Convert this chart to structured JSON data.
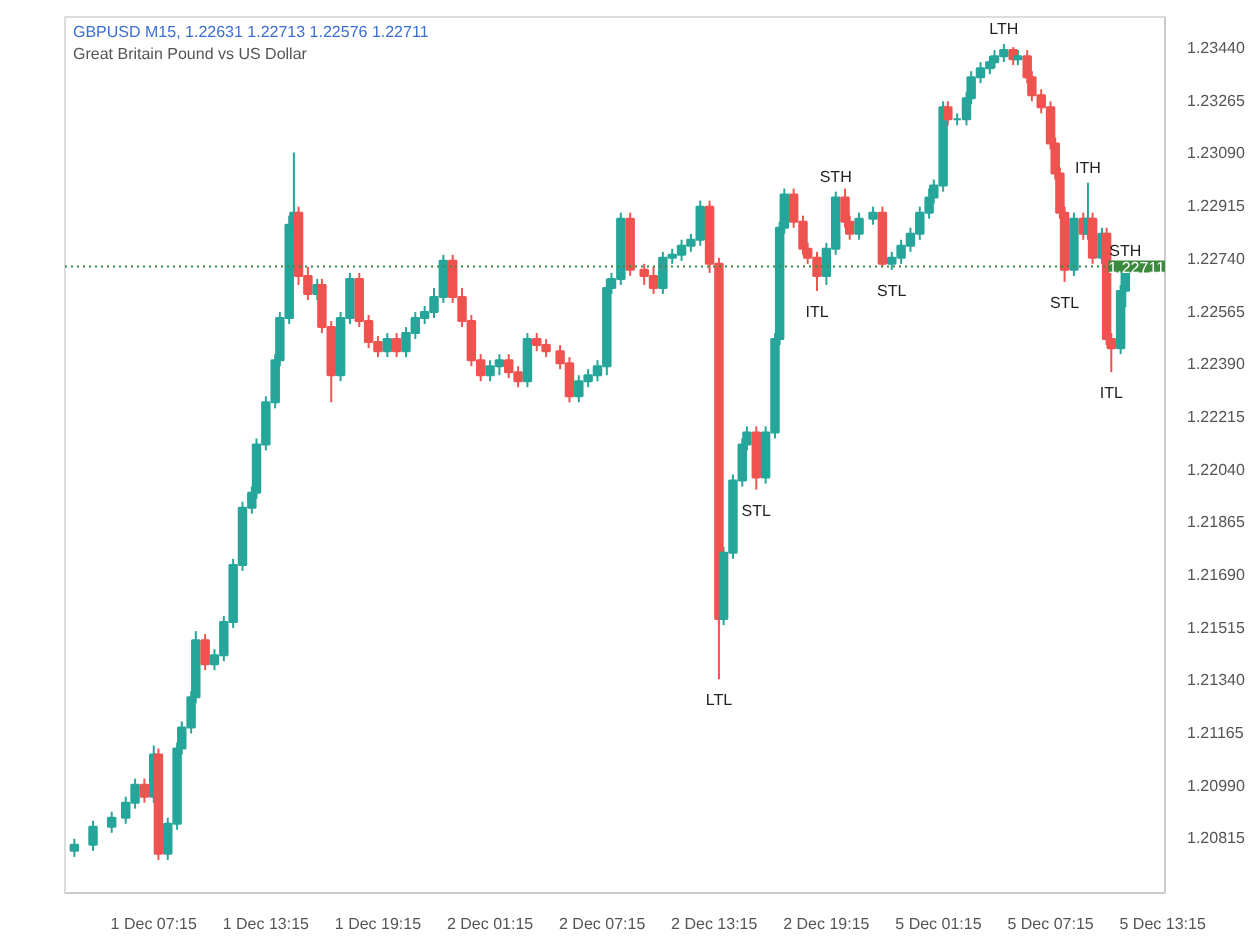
{
  "chart_data": {
    "type": "candlestick",
    "title": "GBPUSD M15, 1.22631 1.22713 1.22576 1.22711",
    "subtitle": "Great Britain Pound vs US Dollar",
    "categories": [
      null,
      null,
      null,
      null,
      null,
      null,
      null,
      null,
      null,
      null,
      null,
      null,
      null,
      null,
      null,
      null,
      null,
      null,
      "1 Dec 07:15",
      null,
      null,
      null,
      null,
      null,
      null,
      null,
      null,
      null,
      null,
      null,
      null,
      null,
      null,
      null,
      null,
      null,
      null,
      null,
      null,
      null,
      null,
      null,
      "1 Dec 13:15",
      null,
      null,
      null,
      null,
      null,
      null,
      null,
      null,
      null,
      null,
      null,
      null,
      null,
      null,
      null,
      null,
      null,
      null,
      null,
      null,
      null,
      null,
      null,
      "1 Dec 19:15",
      null,
      null,
      null,
      null,
      null,
      null,
      null,
      null,
      null,
      null,
      null,
      null,
      null,
      null,
      null,
      null,
      null,
      null,
      null,
      null,
      null,
      null,
      null,
      "2 Dec 01:15",
      null,
      null,
      null,
      null,
      null,
      null,
      null,
      null,
      null,
      null,
      null,
      null,
      null,
      null,
      null,
      null,
      null,
      null,
      null,
      null,
      null,
      null,
      null,
      "2 Dec 07:15",
      null,
      null,
      null,
      null,
      null,
      null,
      null,
      null,
      null,
      null,
      null,
      null,
      null,
      null,
      null,
      null,
      null,
      null,
      null,
      null,
      null,
      null,
      null,
      "2 Dec 13:15",
      null,
      null,
      null,
      null,
      null,
      null,
      null,
      null,
      null,
      null,
      null,
      null,
      null,
      null,
      null,
      null,
      null,
      null,
      null,
      null,
      null,
      null,
      null,
      "2 Dec 19:15",
      null,
      null,
      null,
      null,
      null,
      null,
      null,
      null,
      null,
      null,
      null,
      null,
      null,
      null,
      null,
      null,
      null,
      null,
      null,
      null,
      null,
      null,
      null,
      "5 Dec 01:15",
      null,
      null,
      null,
      null,
      null,
      null,
      null,
      null,
      null,
      null,
      null,
      null,
      null,
      null,
      null,
      null,
      null,
      null,
      null,
      null,
      null,
      null,
      null,
      "5 Dec 07:15",
      null,
      null,
      null,
      null,
      null,
      null,
      null,
      null,
      null,
      null,
      null,
      null,
      null,
      null,
      null,
      null,
      null,
      null,
      null,
      null,
      null,
      null,
      null,
      "5 Dec 13:15"
    ],
    "ohlc": [
      null,
      [
        1.2077,
        1.2081,
        1.2075,
        1.2079
      ],
      null,
      null,
      null,
      [
        1.2079,
        1.2087,
        1.2077,
        1.2085
      ],
      null,
      null,
      null,
      [
        1.2085,
        1.209,
        1.2083,
        1.2088
      ],
      null,
      null,
      [
        1.2088,
        1.2095,
        1.2086,
        1.2093
      ],
      null,
      [
        1.2093,
        1.2101,
        1.2091,
        1.2099
      ],
      null,
      [
        1.2099,
        1.2101,
        1.2093,
        1.2095
      ],
      null,
      [
        1.2095,
        1.2112,
        1.2093,
        1.2109
      ],
      [
        1.2109,
        1.2111,
        1.2074,
        1.2076
      ],
      null,
      [
        1.2076,
        1.2088,
        1.2074,
        1.2086
      ],
      null,
      [
        1.2086,
        1.2113,
        1.2084,
        1.2111
      ],
      [
        1.2111,
        1.212,
        1.2109,
        1.2118
      ],
      null,
      [
        1.2118,
        1.213,
        1.2116,
        1.2128
      ],
      [
        1.2128,
        1.215,
        1.2126,
        1.2147
      ],
      null,
      [
        1.2147,
        1.2149,
        1.2137,
        1.2139
      ],
      null,
      [
        1.2139,
        1.2144,
        1.2137,
        1.2142
      ],
      null,
      [
        1.2142,
        1.2155,
        1.214,
        1.2153
      ],
      null,
      [
        1.2153,
        1.2174,
        1.2151,
        1.2172
      ],
      null,
      [
        1.2172,
        1.2193,
        1.217,
        1.2191
      ],
      null,
      [
        1.2191,
        1.2198,
        1.2189,
        1.2196
      ],
      [
        1.2196,
        1.2214,
        1.2194,
        1.2212
      ],
      null,
      [
        1.2212,
        1.2228,
        1.221,
        1.2226
      ],
      null,
      [
        1.2226,
        1.2242,
        1.2224,
        1.224
      ],
      [
        1.224,
        1.2256,
        1.2238,
        1.2254
      ],
      null,
      [
        1.2254,
        1.2288,
        1.2252,
        1.2285
      ],
      [
        1.2285,
        1.2309,
        1.2283,
        1.2289
      ],
      [
        1.2289,
        1.2291,
        1.2265,
        1.2268
      ],
      null,
      [
        1.2268,
        1.2271,
        1.226,
        1.2262
      ],
      null,
      [
        1.2262,
        1.2267,
        1.226,
        1.2265
      ],
      [
        1.2265,
        1.2267,
        1.2249,
        1.2251
      ],
      null,
      [
        1.2251,
        1.2253,
        1.2226,
        1.2235
      ],
      null,
      [
        1.2235,
        1.2256,
        1.2233,
        1.2254
      ],
      null,
      [
        1.2254,
        1.2269,
        1.2252,
        1.2267
      ],
      null,
      [
        1.2267,
        1.2269,
        1.2251,
        1.2253
      ],
      null,
      [
        1.2253,
        1.2255,
        1.2244,
        1.2246
      ],
      null,
      [
        1.2246,
        1.2248,
        1.2241,
        1.2243
      ],
      null,
      [
        1.2243,
        1.2249,
        1.2241,
        1.2247
      ],
      null,
      [
        1.2247,
        1.2249,
        1.2241,
        1.2243
      ],
      null,
      [
        1.2243,
        1.2251,
        1.2241,
        1.2249
      ],
      null,
      [
        1.2249,
        1.2256,
        1.2247,
        1.2254
      ],
      null,
      [
        1.2254,
        1.2258,
        1.2252,
        1.2256
      ],
      null,
      [
        1.2256,
        1.2264,
        1.2254,
        1.2261
      ],
      null,
      [
        1.2261,
        1.2275,
        1.2259,
        1.2273
      ],
      null,
      [
        1.2273,
        1.2275,
        1.2259,
        1.2261
      ],
      null,
      [
        1.2261,
        1.2264,
        1.2251,
        1.2253
      ],
      null,
      [
        1.2253,
        1.2255,
        1.2238,
        1.224
      ],
      null,
      [
        1.224,
        1.2242,
        1.2233,
        1.2235
      ],
      null,
      [
        1.2235,
        1.224,
        1.2233,
        1.2238
      ],
      null,
      [
        1.2238,
        1.2242,
        1.2235,
        1.224
      ],
      null,
      [
        1.224,
        1.2242,
        1.2234,
        1.2236
      ],
      null,
      [
        1.2236,
        1.2238,
        1.2231,
        1.2233
      ],
      null,
      [
        1.2233,
        1.2249,
        1.2231,
        1.2247
      ],
      null,
      [
        1.2247,
        1.2249,
        1.2243,
        1.2245
      ],
      null,
      [
        1.2245,
        1.2247,
        1.2241,
        1.2243
      ],
      null,
      null,
      [
        1.2243,
        1.2245,
        1.2237,
        1.2239
      ],
      null,
      [
        1.2239,
        1.2241,
        1.2226,
        1.2228
      ],
      null,
      [
        1.2228,
        1.2235,
        1.2226,
        1.2233
      ],
      null,
      [
        1.2233,
        1.2237,
        1.2231,
        1.2235
      ],
      null,
      [
        1.2235,
        1.224,
        1.2233,
        1.2238
      ],
      null,
      [
        1.2238,
        1.2267,
        1.2235,
        1.2264
      ],
      [
        1.2264,
        1.2269,
        1.2262,
        1.2267
      ],
      null,
      [
        1.2267,
        1.2289,
        1.2265,
        1.2287
      ],
      null,
      [
        1.2287,
        1.2289,
        1.2268,
        1.227
      ],
      null,
      null,
      [
        1.227,
        1.2272,
        1.2265,
        1.2268
      ],
      null,
      [
        1.2268,
        1.2271,
        1.2262,
        1.2264
      ],
      null,
      [
        1.2264,
        1.2276,
        1.2262,
        1.2274
      ],
      null,
      [
        1.2274,
        1.2277,
        1.2272,
        1.2275
      ],
      null,
      [
        1.2275,
        1.228,
        1.2273,
        1.2278
      ],
      null,
      [
        1.2278,
        1.2282,
        1.2276,
        1.228
      ],
      null,
      [
        1.228,
        1.2293,
        1.2278,
        1.2291
      ],
      null,
      [
        1.2291,
        1.2293,
        1.2269,
        1.2272
      ],
      null,
      [
        1.2272,
        1.2274,
        1.2134,
        1.2154
      ],
      [
        1.2154,
        1.2178,
        1.2152,
        1.2176
      ],
      null,
      [
        1.2176,
        1.2202,
        1.2174,
        1.22
      ],
      null,
      [
        1.22,
        1.2214,
        1.2198,
        1.2212
      ],
      [
        1.2212,
        1.2218,
        1.221,
        1.2216
      ],
      null,
      [
        1.2216,
        1.2218,
        1.2197,
        1.2201
      ],
      null,
      [
        1.2201,
        1.2218,
        1.2199,
        1.2216
      ],
      null,
      [
        1.2216,
        1.2249,
        1.2214,
        1.2247
      ],
      [
        1.2247,
        1.2286,
        1.2245,
        1.2284
      ],
      [
        1.2284,
        1.2297,
        1.2282,
        1.2295
      ],
      null,
      [
        1.2295,
        1.2297,
        1.2284,
        1.2286
      ],
      null,
      [
        1.2286,
        1.2288,
        1.2275,
        1.2277
      ],
      [
        1.2277,
        1.2279,
        1.2272,
        1.2274
      ],
      null,
      [
        1.2274,
        1.2276,
        1.2263,
        1.2268
      ],
      null,
      [
        1.2268,
        1.2279,
        1.2265,
        1.2277
      ],
      null,
      [
        1.2277,
        1.2296,
        1.2275,
        1.2294
      ],
      null,
      [
        1.2294,
        1.2297,
        1.2284,
        1.2286
      ],
      [
        1.2286,
        1.2288,
        1.228,
        1.2282
      ],
      null,
      [
        1.2282,
        1.2289,
        1.228,
        1.2287
      ],
      null,
      null,
      [
        1.2287,
        1.2291,
        1.2285,
        1.2289
      ],
      null,
      [
        1.2289,
        1.2291,
        1.2271,
        1.2272
      ],
      null,
      [
        1.2272,
        1.2276,
        1.227,
        1.2274
      ],
      null,
      [
        1.2274,
        1.228,
        1.2272,
        1.2278
      ],
      null,
      [
        1.2278,
        1.2284,
        1.2276,
        1.2282
      ],
      null,
      [
        1.2282,
        1.2291,
        1.228,
        1.2289
      ],
      null,
      [
        1.2289,
        1.2297,
        1.2287,
        1.2294
      ],
      [
        1.2294,
        1.23,
        1.2292,
        1.2298
      ],
      null,
      [
        1.2298,
        1.2326,
        1.2296,
        1.2324
      ],
      [
        1.2324,
        1.2326,
        1.2318,
        1.232
      ],
      null,
      [
        1.232,
        1.2322,
        1.2318,
        1.232
      ],
      null,
      [
        1.232,
        1.2329,
        1.2318,
        1.2327
      ],
      [
        1.2327,
        1.2336,
        1.2325,
        1.2334
      ],
      null,
      [
        1.2334,
        1.2339,
        1.2332,
        1.2337
      ],
      null,
      [
        1.2337,
        1.2341,
        1.2335,
        1.2339
      ],
      [
        1.2339,
        1.2343,
        1.2337,
        1.2341
      ],
      null,
      [
        1.2341,
        1.2345,
        1.2339,
        1.2343
      ],
      null,
      [
        1.2343,
        1.2344,
        1.2338,
        1.234
      ],
      [
        1.234,
        1.2343,
        1.2338,
        1.2341
      ],
      null,
      [
        1.2341,
        1.2343,
        1.2332,
        1.2334
      ],
      [
        1.2334,
        1.2336,
        1.2326,
        1.2328
      ],
      null,
      [
        1.2328,
        1.233,
        1.2322,
        1.2324
      ],
      null,
      [
        1.2324,
        1.2326,
        1.231,
        1.2312
      ],
      [
        1.2312,
        1.2314,
        1.23,
        1.2302
      ],
      [
        1.2302,
        1.2304,
        1.2287,
        1.2289
      ],
      [
        1.2289,
        1.2291,
        1.2266,
        1.227
      ],
      null,
      [
        1.227,
        1.2289,
        1.2268,
        1.2287
      ],
      null,
      [
        1.2287,
        1.2289,
        1.228,
        1.2282
      ],
      [
        1.2282,
        1.2299,
        1.228,
        1.2287
      ],
      [
        1.2287,
        1.2289,
        1.2272,
        1.2274
      ],
      null,
      [
        1.2274,
        1.2284,
        1.2272,
        1.2282
      ],
      [
        1.2282,
        1.2284,
        1.2245,
        1.2247
      ],
      [
        1.2247,
        1.2249,
        1.2236,
        1.2244
      ],
      null,
      [
        1.2244,
        1.2265,
        1.2242,
        1.2263
      ],
      [
        1.22631,
        1.22713,
        1.22576,
        1.22711
      ],
      null,
      null,
      null,
      null,
      null,
      null,
      null,
      null
    ],
    "ylim": [
      1.2063,
      1.2354
    ],
    "yticks": [
      {
        "value": 1.20815,
        "label": "1.20815"
      },
      {
        "value": 1.2099,
        "label": "1.20990"
      },
      {
        "value": 1.21165,
        "label": "1.21165"
      },
      {
        "value": 1.2134,
        "label": "1.21340"
      },
      {
        "value": 1.21515,
        "label": "1.21515"
      },
      {
        "value": 1.2169,
        "label": "1.21690"
      },
      {
        "value": 1.21865,
        "label": "1.21865"
      },
      {
        "value": 1.2204,
        "label": "1.22040"
      },
      {
        "value": 1.22215,
        "label": "1.22215"
      },
      {
        "value": 1.2239,
        "label": "1.22390"
      },
      {
        "value": 1.22565,
        "label": "1.22565"
      },
      {
        "value": 1.2274,
        "label": "1.22740"
      },
      {
        "value": 1.22915,
        "label": "1.22915"
      },
      {
        "value": 1.2309,
        "label": "1.23090"
      },
      {
        "value": 1.23265,
        "label": "1.23265"
      },
      {
        "value": 1.2344,
        "label": "1.23440"
      }
    ],
    "ref_lines": [
      {
        "axis": "y",
        "value": 1.22711,
        "label": "1.22711",
        "color": "#3b8a3e",
        "line_style": "dotted"
      }
    ],
    "annotations": [
      {
        "text": "LTL",
        "y": 1.2134
      },
      {
        "text": "STL",
        "y": 1.2197
      },
      {
        "text": "ITL",
        "y": 1.2263
      },
      {
        "text": "STH",
        "y": 1.2296
      },
      {
        "text": "STL",
        "y": 1.227
      },
      {
        "text": "LTH",
        "y": 1.2345
      },
      {
        "text": "STL",
        "y": 1.2266
      },
      {
        "text": "ITH",
        "y": 1.2299
      },
      {
        "text": "ITL",
        "y": 1.2236
      },
      {
        "text": "STH",
        "y": 1.22713
      }
    ],
    "grid": false
  }
}
